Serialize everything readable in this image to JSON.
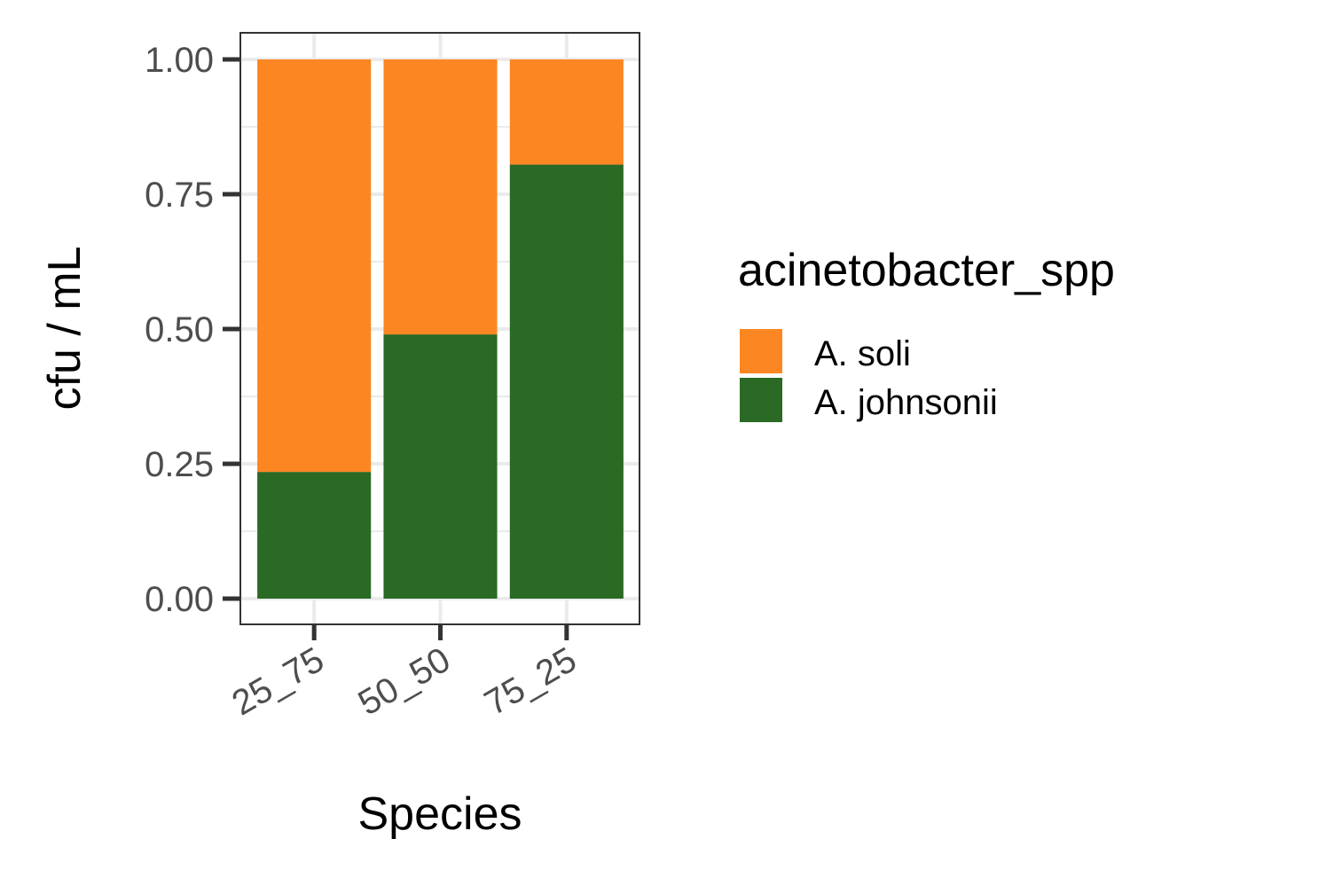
{
  "chart_data": {
    "type": "bar",
    "stacked": true,
    "categories": [
      "25_75",
      "50_50",
      "75_25"
    ],
    "series": [
      {
        "name": "A. johnsonii",
        "color": "#2a6a24",
        "values": [
          0.235,
          0.49,
          0.805
        ]
      },
      {
        "name": "A. soli",
        "color": "#fc8622",
        "values": [
          0.765,
          0.51,
          0.195
        ]
      }
    ],
    "xlabel": "Species",
    "ylabel": "cfu / mL",
    "ylim": [
      0,
      1
    ],
    "yticks": [
      0.0,
      0.25,
      0.5,
      0.75,
      1.0
    ],
    "ytick_labels": [
      "0.00",
      "0.25",
      "0.50",
      "0.75",
      "1.00"
    ],
    "grid": true,
    "legend": {
      "title": "acinetobacter_spp",
      "position": "right",
      "entries": [
        {
          "label": "A. soli",
          "color": "#fc8622"
        },
        {
          "label": "A. johnsonii",
          "color": "#2a6a24"
        }
      ]
    }
  }
}
